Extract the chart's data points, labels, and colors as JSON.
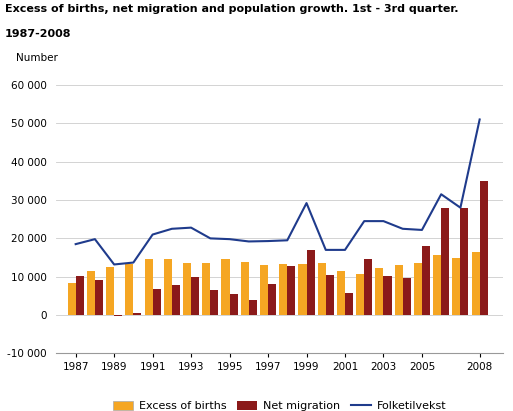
{
  "title_line1": "Excess of births, net migration and population growth. 1st - 3rd quarter.",
  "title_line2": "1987-2008",
  "ylabel": "Number",
  "years": [
    1987,
    1988,
    1989,
    1990,
    1991,
    1992,
    1993,
    1994,
    1995,
    1996,
    1997,
    1998,
    1999,
    2000,
    2001,
    2002,
    2003,
    2004,
    2005,
    2006,
    2007,
    2008
  ],
  "excess_births": [
    8300,
    11500,
    12500,
    13200,
    14500,
    14500,
    13700,
    13700,
    14500,
    13800,
    13000,
    13200,
    13200,
    13500,
    11500,
    10800,
    12300,
    13000,
    13500,
    15700,
    14800,
    16500
  ],
  "net_migration": [
    10200,
    9200,
    -200,
    500,
    6800,
    7800,
    10000,
    6600,
    5500,
    4000,
    8000,
    12800,
    17000,
    10400,
    5800,
    14600,
    10100,
    9800,
    18000,
    27800,
    28000,
    35000
  ],
  "folketilvekst": [
    18500,
    19800,
    13200,
    13700,
    21000,
    22500,
    22800,
    20000,
    19800,
    19200,
    19300,
    19500,
    29200,
    17000,
    17000,
    24500,
    24500,
    22500,
    22200,
    31500,
    28000,
    51000
  ],
  "bar_color_births": "#F5A623",
  "bar_color_migration": "#8B1A1A",
  "line_color": "#1F3B8C",
  "xtick_labels": [
    "1987",
    "1989",
    "1991",
    "1993",
    "1995",
    "1997",
    "1999",
    "2001",
    "2003",
    "2005",
    "2008"
  ],
  "xtick_positions": [
    1987,
    1989,
    1991,
    1993,
    1995,
    1997,
    1999,
    2001,
    2003,
    2005,
    2008
  ],
  "ylim": [
    -10000,
    65000
  ],
  "yticks": [
    -10000,
    0,
    10000,
    20000,
    30000,
    40000,
    50000,
    60000
  ],
  "ytick_labels": [
    "-10 000",
    "0",
    "10 000",
    "20 000",
    "30 000",
    "40 000",
    "50 000",
    "60 000"
  ],
  "legend_births": "Excess of births",
  "legend_migration": "Net migration",
  "legend_line": "Folketilvekst",
  "background_color": "#ffffff",
  "grid_color": "#cccccc"
}
